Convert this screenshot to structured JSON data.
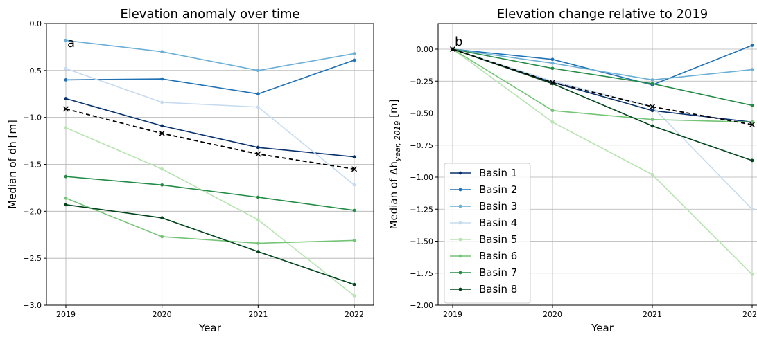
{
  "chart_data": [
    {
      "type": "line",
      "title": "Elevation anomaly over time",
      "panel_label": "a",
      "xlabel": "Year",
      "ylabel": "Median of dh [m]",
      "x": [
        2019,
        2020,
        2021,
        2022
      ],
      "ylim": [
        -3.0,
        0.0
      ],
      "yticks": [
        0.0,
        -0.5,
        -1.0,
        -1.5,
        -2.0,
        -2.5,
        -3.0
      ],
      "ytick_labels": [
        "0.0",
        "−0.5",
        "−1.0",
        "−1.5",
        "−2.0",
        "−2.5",
        "−3.0"
      ],
      "xtick_labels": [
        "2019",
        "2020",
        "2021",
        "2022"
      ],
      "grid": true,
      "series": [
        {
          "name": "Basin 1",
          "color": "#08306b",
          "values": [
            -0.8,
            -1.09,
            -1.32,
            -1.42
          ]
        },
        {
          "name": "Basin 2",
          "color": "#2171b5",
          "values": [
            -0.6,
            -0.59,
            -0.75,
            -0.39
          ]
        },
        {
          "name": "Basin 3",
          "color": "#6baed6",
          "values": [
            -0.18,
            -0.3,
            -0.5,
            -0.32
          ]
        },
        {
          "name": "Basin 4",
          "color": "#c6dbef",
          "values": [
            -0.48,
            -0.84,
            -0.89,
            -1.72
          ]
        },
        {
          "name": "Basin 5",
          "color": "#b7e4b0",
          "values": [
            -1.11,
            -1.55,
            -2.09,
            -2.9
          ]
        },
        {
          "name": "Basin 6",
          "color": "#74c476",
          "values": [
            -1.86,
            -2.27,
            -2.34,
            -2.31
          ]
        },
        {
          "name": "Basin 7",
          "color": "#238b45",
          "values": [
            -1.63,
            -1.72,
            -1.85,
            -1.99
          ]
        },
        {
          "name": "Basin 8",
          "color": "#00441b",
          "values": [
            -1.93,
            -2.07,
            -2.43,
            -2.78
          ]
        },
        {
          "name": "",
          "color": "#000000",
          "dashed": true,
          "marker": "x",
          "values": [
            -0.91,
            -1.17,
            -1.39,
            -1.55
          ]
        }
      ]
    },
    {
      "type": "line",
      "title": "Elevation change relative to 2019",
      "panel_label": "b",
      "xlabel": "Year",
      "ylabel": "Median of Δh",
      "ylabel_sub": "year, 2019",
      "ylabel_unit": " [m]",
      "x": [
        2019,
        2020,
        2021,
        2022
      ],
      "ylim": [
        -2.0,
        0.2
      ],
      "yticks": [
        0.0,
        -0.25,
        -0.5,
        -0.75,
        -1.0,
        -1.25,
        -1.5,
        -1.75,
        -2.0
      ],
      "ytick_labels": [
        "0.00",
        "−0.25",
        "−0.50",
        "−0.75",
        "−1.00",
        "−1.25",
        "−1.50",
        "−1.75",
        "−2.00"
      ],
      "xtick_labels": [
        "2019",
        "2020",
        "2021",
        "2022"
      ],
      "grid": true,
      "legend_placement": "lower-left",
      "series": [
        {
          "name": "Basin 1",
          "color": "#08306b",
          "values": [
            0.0,
            -0.26,
            -0.48,
            -0.57
          ]
        },
        {
          "name": "Basin 2",
          "color": "#2171b5",
          "values": [
            0.0,
            -0.08,
            -0.28,
            0.03
          ]
        },
        {
          "name": "Basin 3",
          "color": "#6baed6",
          "values": [
            0.0,
            -0.11,
            -0.24,
            -0.16
          ]
        },
        {
          "name": "Basin 4",
          "color": "#c6dbef",
          "values": [
            0.0,
            -0.25,
            -0.45,
            -1.25
          ]
        },
        {
          "name": "Basin 5",
          "color": "#b7e4b0",
          "values": [
            0.0,
            -0.57,
            -0.98,
            -1.76
          ]
        },
        {
          "name": "Basin 6",
          "color": "#74c476",
          "values": [
            0.0,
            -0.48,
            -0.55,
            -0.57
          ]
        },
        {
          "name": "Basin 7",
          "color": "#238b45",
          "values": [
            0.0,
            -0.15,
            -0.27,
            -0.44
          ]
        },
        {
          "name": "Basin 8",
          "color": "#00441b",
          "values": [
            0.0,
            -0.27,
            -0.6,
            -0.87
          ]
        },
        {
          "name": "",
          "color": "#000000",
          "dashed": true,
          "marker": "x",
          "values": [
            0.0,
            -0.26,
            -0.45,
            -0.59
          ]
        }
      ]
    }
  ]
}
